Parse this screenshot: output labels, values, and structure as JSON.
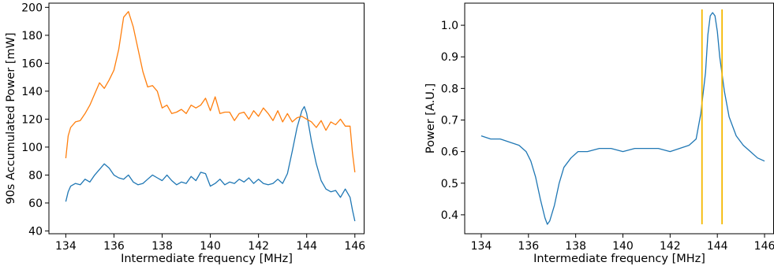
{
  "chart_data": [
    {
      "type": "line",
      "title": "",
      "xlabel": "Intermediate frequency [MHz]",
      "ylabel": "90s Accumulated Power [mW]",
      "xlim": [
        133.3,
        146.4
      ],
      "ylim": [
        38,
        203
      ],
      "xticks": [
        134,
        136,
        138,
        140,
        142,
        144,
        146
      ],
      "yticks": [
        40,
        60,
        80,
        100,
        120,
        140,
        160,
        180,
        200
      ],
      "grid": false,
      "legend": "none",
      "series": [
        {
          "color": "#1f77b4",
          "x": [
            134.0,
            134.1,
            134.2,
            134.4,
            134.6,
            134.8,
            135.0,
            135.2,
            135.4,
            135.6,
            135.8,
            136.0,
            136.2,
            136.4,
            136.6,
            136.8,
            137.0,
            137.2,
            137.4,
            137.6,
            137.8,
            138.0,
            138.2,
            138.4,
            138.6,
            138.8,
            139.0,
            139.2,
            139.4,
            139.6,
            139.8,
            140.0,
            140.2,
            140.4,
            140.6,
            140.8,
            141.0,
            141.2,
            141.4,
            141.6,
            141.8,
            142.0,
            142.2,
            142.4,
            142.6,
            142.8,
            143.0,
            143.2,
            143.4,
            143.6,
            143.8,
            143.9,
            144.0,
            144.2,
            144.4,
            144.6,
            144.8,
            145.0,
            145.2,
            145.4,
            145.6,
            145.8,
            145.9,
            146.0
          ],
          "values": [
            61,
            68,
            72,
            74,
            73,
            77,
            75,
            80,
            84,
            88,
            85,
            80,
            78,
            77,
            80,
            75,
            73,
            74,
            77,
            80,
            78,
            76,
            80,
            76,
            73,
            75,
            74,
            79,
            76,
            82,
            81,
            72,
            74,
            77,
            73,
            75,
            74,
            77,
            75,
            78,
            74,
            77,
            74,
            73,
            74,
            77,
            74,
            81,
            97,
            114,
            126,
            129,
            124,
            104,
            88,
            76,
            70,
            68,
            69,
            64,
            70,
            64,
            55,
            47
          ]
        },
        {
          "color": "#ff7f0e",
          "x": [
            134.0,
            134.1,
            134.2,
            134.4,
            134.6,
            134.8,
            135.0,
            135.2,
            135.4,
            135.6,
            135.8,
            136.0,
            136.2,
            136.4,
            136.6,
            136.8,
            137.0,
            137.2,
            137.4,
            137.6,
            137.8,
            138.0,
            138.2,
            138.4,
            138.6,
            138.8,
            139.0,
            139.2,
            139.4,
            139.6,
            139.8,
            140.0,
            140.2,
            140.4,
            140.6,
            140.8,
            141.0,
            141.2,
            141.4,
            141.6,
            141.8,
            142.0,
            142.2,
            142.4,
            142.6,
            142.8,
            143.0,
            143.2,
            143.4,
            143.6,
            143.8,
            144.0,
            144.2,
            144.4,
            144.6,
            144.8,
            145.0,
            145.2,
            145.4,
            145.6,
            145.8,
            145.9,
            146.0
          ],
          "values": [
            92,
            108,
            114,
            118,
            119,
            124,
            130,
            138,
            146,
            142,
            148,
            155,
            170,
            193,
            197,
            186,
            170,
            154,
            143,
            144,
            140,
            128,
            130,
            124,
            125,
            127,
            124,
            130,
            128,
            130,
            135,
            126,
            136,
            124,
            125,
            125,
            119,
            124,
            125,
            120,
            126,
            122,
            128,
            124,
            119,
            126,
            118,
            124,
            118,
            121,
            122,
            120,
            118,
            114,
            119,
            112,
            118,
            116,
            120,
            115,
            115,
            96,
            82
          ]
        }
      ]
    },
    {
      "type": "line",
      "title": "",
      "xlabel": "Intermediate frequency [MHz]",
      "ylabel": "Power [A.U.]",
      "xlim": [
        133.3,
        146.4
      ],
      "ylim": [
        0.34,
        1.07
      ],
      "xticks": [
        134,
        136,
        138,
        140,
        142,
        144,
        146
      ],
      "yticks": [
        0.4,
        0.5,
        0.6,
        0.7,
        0.8,
        0.9,
        1.0
      ],
      "grid": false,
      "legend": "none",
      "series": [
        {
          "color": "#1f77b4",
          "x": [
            134.0,
            134.4,
            134.8,
            135.2,
            135.6,
            135.9,
            136.1,
            136.3,
            136.5,
            136.7,
            136.8,
            136.9,
            137.1,
            137.3,
            137.5,
            137.8,
            138.1,
            138.5,
            139.0,
            139.5,
            140.0,
            140.5,
            141.0,
            141.5,
            142.0,
            142.4,
            142.8,
            143.1,
            143.3,
            143.5,
            143.6,
            143.7,
            143.8,
            143.9,
            144.0,
            144.1,
            144.3,
            144.5,
            144.8,
            145.1,
            145.4,
            145.7,
            146.0
          ],
          "values": [
            0.65,
            0.64,
            0.64,
            0.63,
            0.62,
            0.6,
            0.57,
            0.52,
            0.45,
            0.39,
            0.37,
            0.38,
            0.43,
            0.5,
            0.55,
            0.58,
            0.6,
            0.6,
            0.61,
            0.61,
            0.6,
            0.61,
            0.61,
            0.61,
            0.6,
            0.61,
            0.62,
            0.64,
            0.72,
            0.85,
            0.97,
            1.03,
            1.04,
            1.03,
            0.98,
            0.9,
            0.79,
            0.71,
            0.65,
            0.62,
            0.6,
            0.58,
            0.57
          ]
        }
      ],
      "markers": [
        {
          "color": "#f5b800",
          "x": 143.35,
          "y": [
            0.37,
            1.05
          ]
        },
        {
          "color": "#f5b800",
          "x": 144.2,
          "y": [
            0.37,
            1.05
          ]
        }
      ]
    }
  ]
}
